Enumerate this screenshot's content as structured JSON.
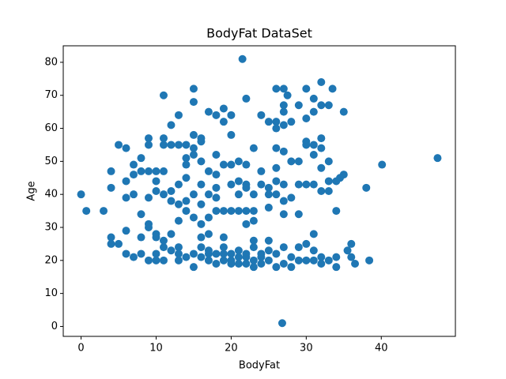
{
  "chart_data": {
    "type": "scatter",
    "title": "BodyFat DataSet",
    "x_label": "BodyFat",
    "y_label": "Age",
    "color": "#1f77b4",
    "xlim": [
      -2.375,
      49.875
    ],
    "ylim": [
      -3,
      85
    ],
    "xticks": [
      0,
      10,
      20,
      30,
      40
    ],
    "yticks": [
      0,
      10,
      20,
      30,
      40,
      50,
      60,
      70,
      80
    ],
    "x": [
      0,
      0.7,
      3,
      47.5,
      40.1,
      38,
      38.4,
      36.5,
      36,
      35.5,
      35,
      35,
      34.5,
      34,
      33.5,
      32,
      32,
      33,
      31,
      30,
      27,
      26,
      27.5,
      21.5,
      26.8,
      22,
      15,
      11,
      15,
      19,
      20,
      24,
      25,
      26,
      27,
      26,
      28,
      27,
      27,
      29,
      31,
      30,
      31,
      32,
      33,
      32,
      33,
      33,
      34,
      31,
      29,
      30,
      29,
      27,
      28,
      26,
      27,
      26,
      26,
      25,
      25,
      25,
      24,
      23,
      22,
      22,
      21,
      20,
      21,
      19,
      18,
      17,
      16,
      15,
      14,
      13,
      12,
      11,
      12,
      13,
      11,
      9,
      9,
      6,
      5,
      4,
      4,
      6,
      7,
      6,
      7,
      8,
      9,
      10,
      11,
      10,
      11,
      12,
      13,
      14,
      14,
      15,
      16,
      17,
      18,
      19,
      20,
      21,
      22,
      22,
      18,
      17,
      16,
      15,
      14,
      13,
      12,
      10,
      9,
      8,
      8,
      9,
      10,
      12,
      14,
      16,
      17,
      16,
      13,
      18,
      19,
      20,
      18,
      17,
      16,
      15,
      14,
      9,
      8,
      6,
      5,
      4,
      4,
      6,
      7,
      10,
      11,
      10,
      11,
      12,
      13,
      13,
      14,
      15,
      15,
      16,
      16,
      17,
      17,
      18,
      18,
      19,
      19,
      19,
      20,
      20,
      20,
      21,
      21,
      22,
      22,
      23,
      23,
      23,
      24,
      24,
      25,
      25,
      26,
      26,
      27,
      27,
      28,
      28,
      29,
      29,
      30,
      30,
      31,
      31,
      32,
      32,
      33,
      34,
      34,
      23,
      25,
      11,
      10,
      9,
      31,
      18,
      23,
      24,
      27,
      22,
      20,
      21,
      23,
      23,
      26,
      27,
      28,
      29,
      30,
      30,
      32,
      31,
      32,
      13,
      17,
      21,
      24,
      22,
      19,
      15,
      16,
      8,
      7,
      36
    ],
    "values": [
      40,
      35,
      35,
      51,
      49,
      42,
      20,
      19,
      25,
      23,
      65,
      46,
      45,
      44,
      72,
      74,
      67,
      67,
      69,
      72,
      72,
      72,
      70,
      81,
      1,
      69,
      72,
      70,
      68,
      66,
      64,
      64,
      62,
      62,
      61,
      60,
      62,
      65,
      67,
      67,
      65,
      56,
      55,
      54,
      50,
      57,
      41,
      44,
      35,
      43,
      43,
      43,
      34,
      34,
      50,
      54,
      53,
      48,
      44,
      42,
      36,
      40,
      47,
      54,
      49,
      43,
      40,
      43,
      50,
      49,
      46,
      47,
      57,
      58,
      55,
      55,
      55,
      55,
      61,
      64,
      57,
      57,
      55,
      54,
      55,
      47,
      42,
      44,
      40,
      39,
      49,
      51,
      47,
      47,
      47,
      44,
      40,
      41,
      43,
      45,
      51,
      54,
      50,
      40,
      42,
      35,
      35,
      35,
      35,
      31,
      35,
      33,
      31,
      33,
      35,
      32,
      28,
      28,
      30,
      27,
      34,
      39,
      41,
      38,
      38,
      37,
      28,
      27,
      37,
      52,
      62,
      58,
      64,
      65,
      56,
      52,
      49,
      20,
      22,
      22,
      25,
      27,
      25,
      29,
      21,
      22,
      20,
      20,
      24,
      23,
      20,
      24,
      21,
      18,
      22,
      21,
      24,
      20,
      23,
      19,
      22,
      20,
      24,
      27,
      22,
      19,
      20,
      21,
      23,
      19,
      22,
      18,
      20,
      24,
      19,
      21,
      20,
      23,
      18,
      22,
      24,
      19,
      21,
      18,
      24,
      20,
      25,
      20,
      20,
      23,
      21,
      19,
      20,
      18,
      21,
      26,
      26,
      26,
      27,
      31,
      28,
      39,
      40,
      43,
      43,
      42,
      49,
      44,
      35,
      32,
      40,
      38,
      39,
      50,
      63,
      55,
      48,
      52,
      41,
      22,
      22,
      19,
      22,
      21,
      22,
      40,
      43,
      47,
      46,
      21
    ]
  }
}
